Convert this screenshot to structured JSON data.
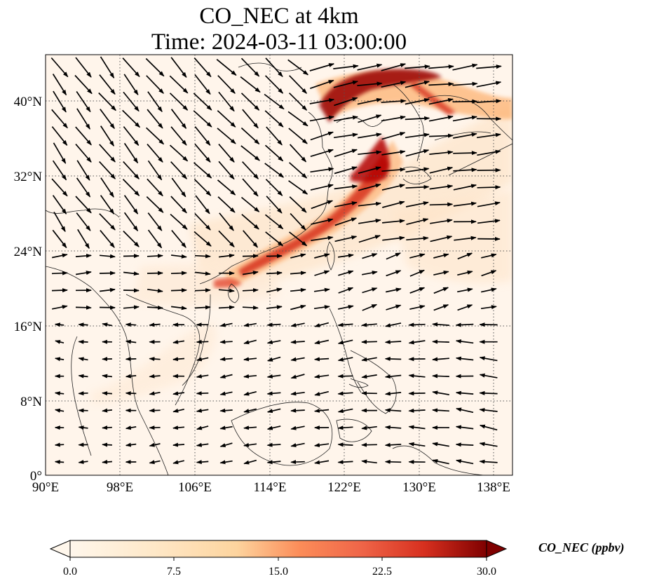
{
  "title": {
    "line1": "CO_NEC at 4km",
    "line2": "Time: 2024-03-11 03:00:00"
  },
  "map": {
    "variable": "CO_NEC",
    "level": "4km",
    "time": "2024-03-11 03:00:00",
    "lon_range": [
      90,
      140
    ],
    "lat_range": [
      0,
      44
    ],
    "gridlines": "dotted",
    "lat_ticks": [
      "40°N",
      "32°N",
      "24°N",
      "16°N",
      "8°N",
      "0°"
    ],
    "lat_values": [
      40,
      32,
      24,
      16,
      8,
      0
    ],
    "lon_ticks": [
      "90°E",
      "98°E",
      "106°E",
      "114°E",
      "122°E",
      "130°E",
      "138°E"
    ],
    "lon_values": [
      90,
      98,
      106,
      114,
      122,
      130,
      138
    ],
    "background_color": "#fff5eb",
    "plume_colors": [
      "#fee6ce",
      "#fdae6b",
      "#e6550d",
      "#a63603",
      "#7f0000"
    ],
    "wind_vectors": "black quiver arrows"
  },
  "colorbar": {
    "label": "CO_NEC (ppbv)",
    "ticks": [
      "0.0",
      "7.5",
      "15.0",
      "22.5",
      "30.0"
    ],
    "tick_values": [
      0,
      7.5,
      15,
      22.5,
      30
    ],
    "range": [
      0,
      30
    ],
    "colormap": "OrRd",
    "extend": "both"
  }
}
